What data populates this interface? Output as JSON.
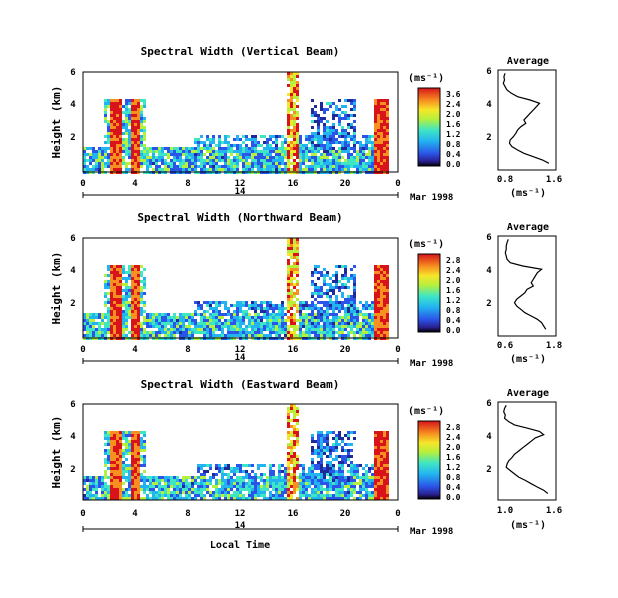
{
  "chart_data": [
    {
      "type": "heatmap",
      "title": "Spectral Width (Vertical Beam)",
      "ylabel": "Height (km)",
      "y_ticks": [
        "6",
        "4",
        "2"
      ],
      "x_ticks": [
        "0",
        "4",
        "8",
        "12",
        "16",
        "20",
        "0"
      ],
      "date_label": "14",
      "date_suffix": "Mar 1998",
      "colorbar_unit": "(ms⁻¹)",
      "colorbar_ticks": [
        "3.6",
        "2.4",
        "2.0",
        "1.6",
        "1.2",
        "0.8",
        "0.4",
        "0.0"
      ],
      "avg_title": "Average",
      "avg_xlabel": "(ms⁻¹)",
      "avg_xticks": [
        "0.8",
        "1.6"
      ],
      "avg_yticks": [
        "6",
        "4",
        "2"
      ],
      "avg_xlim": [
        0.8,
        1.6
      ],
      "avg_profile": {
        "height_km": [
          5.8,
          5.6,
          5.4,
          5.2,
          5.0,
          4.8,
          4.6,
          4.4,
          4.2,
          4.0,
          3.8,
          3.6,
          3.4,
          3.2,
          3.0,
          2.8,
          2.6,
          2.4,
          2.2,
          2.0,
          1.8,
          1.6,
          1.4,
          1.2,
          1.0,
          0.8,
          0.6,
          0.4
        ],
        "width": [
          0.85,
          0.83,
          0.84,
          0.82,
          0.85,
          0.88,
          0.95,
          1.05,
          1.25,
          1.4,
          1.35,
          1.3,
          1.25,
          1.2,
          1.15,
          1.18,
          1.1,
          1.05,
          1.02,
          0.98,
          0.93,
          0.92,
          0.96,
          1.05,
          1.15,
          1.3,
          1.45,
          1.55
        ]
      }
    },
    {
      "type": "heatmap",
      "title": "Spectral Width (Northward Beam)",
      "ylabel": "Height (km)",
      "y_ticks": [
        "6",
        "4",
        "2"
      ],
      "x_ticks": [
        "0",
        "4",
        "8",
        "12",
        "16",
        "20",
        "0"
      ],
      "date_label": "14",
      "date_suffix": "Mar 1998",
      "colorbar_unit": "(ms⁻¹)",
      "colorbar_ticks": [
        "2.8",
        "2.4",
        "2.0",
        "1.6",
        "1.2",
        "0.8",
        "0.4",
        "0.0"
      ],
      "avg_title": "Average",
      "avg_xlabel": "(ms⁻¹)",
      "avg_xticks": [
        "0.6",
        "1.8"
      ],
      "avg_yticks": [
        "6",
        "4",
        "2"
      ],
      "avg_xlim": [
        0.6,
        1.8
      ],
      "avg_profile": {
        "height_km": [
          5.8,
          5.6,
          5.4,
          5.2,
          5.0,
          4.8,
          4.6,
          4.4,
          4.2,
          4.0,
          3.8,
          3.6,
          3.4,
          3.2,
          3.0,
          2.8,
          2.6,
          2.4,
          2.2,
          2.0,
          1.8,
          1.6,
          1.4,
          1.2,
          1.0,
          0.8,
          0.6,
          0.4
        ],
        "width": [
          0.75,
          0.72,
          0.7,
          0.7,
          0.68,
          0.7,
          0.72,
          0.8,
          1.1,
          1.55,
          1.45,
          1.4,
          1.35,
          1.3,
          1.35,
          1.2,
          1.15,
          1.05,
          0.95,
          0.9,
          0.95,
          1.05,
          1.15,
          1.3,
          1.45,
          1.55,
          1.6,
          1.65
        ]
      }
    },
    {
      "type": "heatmap",
      "title": "Spectral Width (Eastward Beam)",
      "ylabel": "Height (km)",
      "y_ticks": [
        "6",
        "4",
        "2"
      ],
      "x_ticks": [
        "0",
        "4",
        "8",
        "12",
        "16",
        "20",
        "0"
      ],
      "date_label": "14",
      "date_suffix": "Mar 1998",
      "xlabel": "Local Time",
      "colorbar_unit": "(ms⁻¹)",
      "colorbar_ticks": [
        "2.8",
        "2.4",
        "2.0",
        "1.6",
        "1.2",
        "0.8",
        "0.4",
        "0.0"
      ],
      "avg_title": "Average",
      "avg_xlabel": "(ms⁻¹)",
      "avg_xticks": [
        "1.0",
        "1.6"
      ],
      "avg_yticks": [
        "6",
        "4",
        "2"
      ],
      "avg_xlim": [
        1.0,
        1.6
      ],
      "avg_profile": {
        "height_km": [
          5.8,
          5.6,
          5.4,
          5.2,
          5.0,
          4.8,
          4.6,
          4.4,
          4.2,
          4.0,
          3.8,
          3.6,
          3.4,
          3.2,
          3.0,
          2.8,
          2.6,
          2.4,
          2.2,
          2.0,
          1.8,
          1.6,
          1.4,
          1.2,
          1.0,
          0.8,
          0.6,
          0.4
        ],
        "width": [
          1.05,
          1.03,
          1.02,
          1.04,
          1.03,
          1.08,
          1.15,
          1.3,
          1.45,
          1.5,
          1.4,
          1.35,
          1.3,
          1.25,
          1.2,
          1.15,
          1.12,
          1.08,
          1.06,
          1.05,
          1.1,
          1.15,
          1.2,
          1.28,
          1.35,
          1.42,
          1.5,
          1.55
        ]
      }
    }
  ]
}
